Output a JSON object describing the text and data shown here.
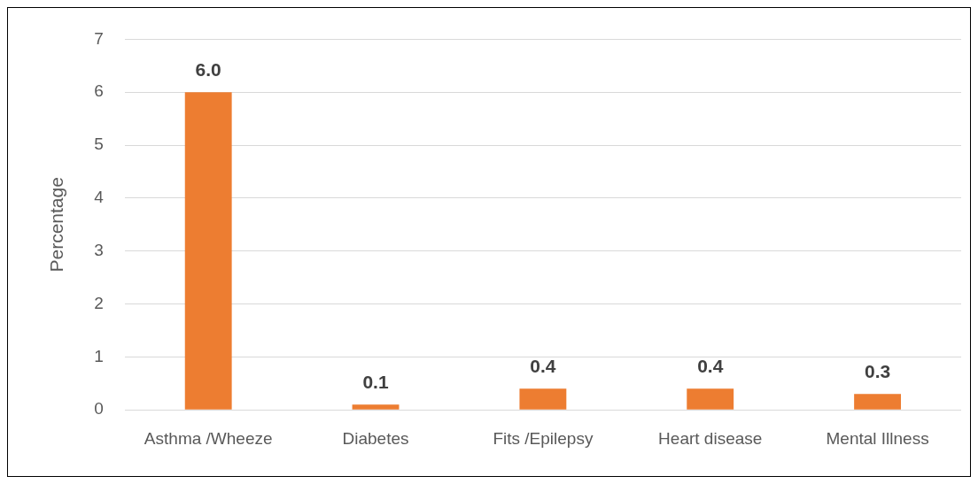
{
  "chart_data": {
    "type": "bar",
    "ylabel": "Percentage",
    "categories": [
      "Asthma /Wheeze",
      "Diabetes",
      "Fits /Epilepsy",
      "Heart disease",
      "Mental Illness"
    ],
    "values": [
      6.0,
      0.1,
      0.4,
      0.4,
      0.3
    ],
    "value_labels": [
      "6.0",
      "0.1",
      "0.4",
      "0.4",
      "0.3"
    ],
    "color": "#ed7d31",
    "ylim": [
      0,
      7
    ],
    "yticks": [
      0,
      1,
      2,
      3,
      4,
      5,
      6,
      7
    ],
    "grid": "y",
    "legend": false
  }
}
